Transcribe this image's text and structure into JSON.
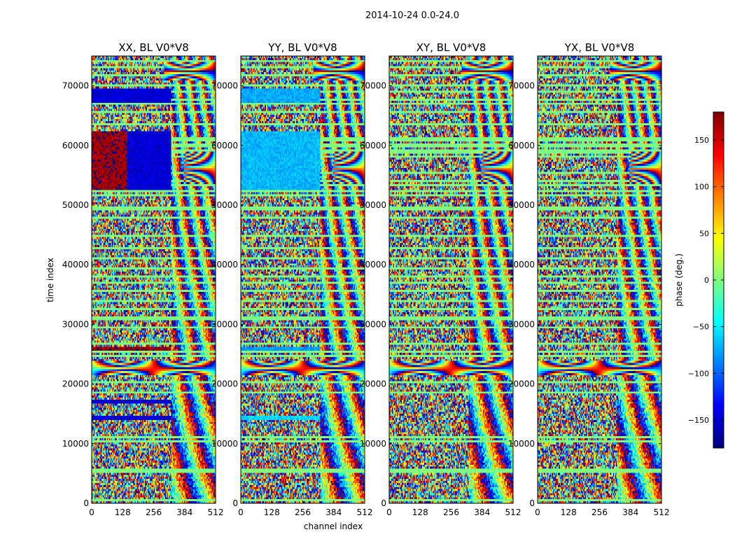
{
  "figure": {
    "suptitle": "2014-10-24 0.0-24.0",
    "shared_xlabel": "channel index",
    "shared_ylabel": "time index"
  },
  "chart_data": [
    {
      "type": "heatmap",
      "title": "XX, BL V0*V8",
      "xlabel": "",
      "ylabel": "time index",
      "xlim": [
        0,
        512
      ],
      "ylim": [
        0,
        75000
      ],
      "xticks": [
        0,
        128,
        256,
        384,
        512
      ],
      "yticks": [
        0,
        10000,
        20000,
        30000,
        40000,
        50000,
        60000,
        70000
      ],
      "value_label": "phase (deg.)",
      "value_range": [
        -180,
        180
      ],
      "colormap": "jet",
      "structure": {
        "data_channel_max": 326,
        "noise_floor": "random phase (all colours) across all channels",
        "fringe_region": {
          "channels": [
            326,
            512
          ],
          "phase_wraps_at_high_channels": true
        },
        "coherent_blocks": [
          {
            "time": [
              52500,
              62500
            ],
            "channels": [
              0,
              326
            ],
            "phase_left": 170,
            "phase_right": -150
          },
          {
            "time": [
              67000,
              69600
            ],
            "channels": [
              0,
              326
            ],
            "phase": -150
          },
          {
            "time": [
              25500,
              26300
            ],
            "channels": [
              0,
              326
            ],
            "phase": 170
          },
          {
            "time": [
              16600,
              17300
            ],
            "channels": [
              0,
              326
            ],
            "phase": -150
          },
          {
            "time": [
              14100,
              14700
            ],
            "channels": [
              0,
              326
            ],
            "phase": -150
          }
        ],
        "fringe_bands": [
          {
            "time": [
              21500,
              23800
            ],
            "full_width": true
          },
          {
            "time": [
              71000,
              74000
            ],
            "channels": [
              300,
              512
            ]
          },
          {
            "time": [
              53500,
              59000
            ],
            "channels": [
              380,
              512
            ]
          }
        ],
        "flagged_rows_phase": 0
      }
    },
    {
      "type": "heatmap",
      "title": "YY, BL V0*V8",
      "xlabel": "channel index",
      "ylabel": "",
      "xlim": [
        0,
        512
      ],
      "ylim": [
        0,
        75000
      ],
      "xticks": [
        0,
        128,
        256,
        384,
        512
      ],
      "yticks": [
        0,
        10000,
        20000,
        30000,
        40000,
        50000,
        60000,
        70000
      ],
      "value_label": "phase (deg.)",
      "value_range": [
        -180,
        180
      ],
      "colormap": "jet",
      "structure": {
        "data_channel_max": 326,
        "noise_floor": "random phase (all colours) across all channels",
        "fringe_region": {
          "channels": [
            326,
            512
          ],
          "phase_wraps_at_high_channels": true
        },
        "coherent_blocks": [
          {
            "time": [
              52500,
              62500
            ],
            "channels": [
              0,
              326
            ],
            "phase": -70
          },
          {
            "time": [
              67000,
              69600
            ],
            "channels": [
              0,
              326
            ],
            "phase": -75
          },
          {
            "time": [
              25500,
              26300
            ],
            "channels": [
              0,
              326
            ],
            "phase": -80
          },
          {
            "time": [
              14100,
              14700
            ],
            "channels": [
              0,
              326
            ],
            "phase": -60
          }
        ],
        "fringe_bands": [
          {
            "time": [
              21500,
              23800
            ],
            "full_width": true
          },
          {
            "time": [
              71000,
              74000
            ],
            "channels": [
              300,
              512
            ]
          },
          {
            "time": [
              53500,
              59000
            ],
            "channels": [
              380,
              512
            ]
          }
        ],
        "flagged_rows_phase": 0
      }
    },
    {
      "type": "heatmap",
      "title": "XY, BL V0*V8",
      "xlabel": "",
      "ylabel": "",
      "xlim": [
        0,
        512
      ],
      "ylim": [
        0,
        75000
      ],
      "xticks": [
        0,
        128,
        256,
        384,
        512
      ],
      "yticks": [
        0,
        10000,
        20000,
        30000,
        40000,
        50000,
        60000,
        70000
      ],
      "value_label": "phase (deg.)",
      "value_range": [
        -180,
        180
      ],
      "colormap": "jet",
      "structure": {
        "data_channel_max": 326,
        "noise_floor": "random phase (all colours) across all channels",
        "fringe_region": {
          "channels": [
            326,
            512
          ],
          "phase_wraps_at_high_channels": true
        },
        "coherent_blocks": [],
        "fringe_bands": [
          {
            "time": [
              21500,
              23800
            ],
            "full_width": true
          },
          {
            "time": [
              71000,
              74000
            ],
            "channels": [
              300,
              512
            ]
          },
          {
            "time": [
              53500,
              59000
            ],
            "channels": [
              380,
              512
            ]
          }
        ],
        "flagged_rows_phase": 0
      }
    },
    {
      "type": "heatmap",
      "title": "YX, BL V0*V8",
      "xlabel": "",
      "ylabel": "",
      "xlim": [
        0,
        512
      ],
      "ylim": [
        0,
        75000
      ],
      "xticks": [
        0,
        128,
        256,
        384,
        512
      ],
      "yticks": [
        0,
        10000,
        20000,
        30000,
        40000,
        50000,
        60000,
        70000
      ],
      "value_label": "phase (deg.)",
      "value_range": [
        -180,
        180
      ],
      "colormap": "jet",
      "structure": {
        "data_channel_max": 326,
        "noise_floor": "random phase (all colours) across all channels",
        "fringe_region": {
          "channels": [
            326,
            512
          ],
          "phase_wraps_at_high_channels": true
        },
        "coherent_blocks": [],
        "fringe_bands": [
          {
            "time": [
              21500,
              23800
            ],
            "full_width": true
          },
          {
            "time": [
              71000,
              74000
            ],
            "channels": [
              300,
              512
            ]
          },
          {
            "time": [
              53500,
              59000
            ],
            "channels": [
              380,
              512
            ]
          }
        ],
        "flagged_rows_phase": 0
      }
    }
  ],
  "colorbar": {
    "label": "phase (deg.)",
    "range": [
      -180,
      180
    ],
    "ticks": [
      -150,
      -100,
      -50,
      0,
      50,
      100,
      150
    ],
    "tick_labels": [
      "−150",
      "−100",
      "−50",
      "0",
      "50",
      "100",
      "150"
    ]
  }
}
